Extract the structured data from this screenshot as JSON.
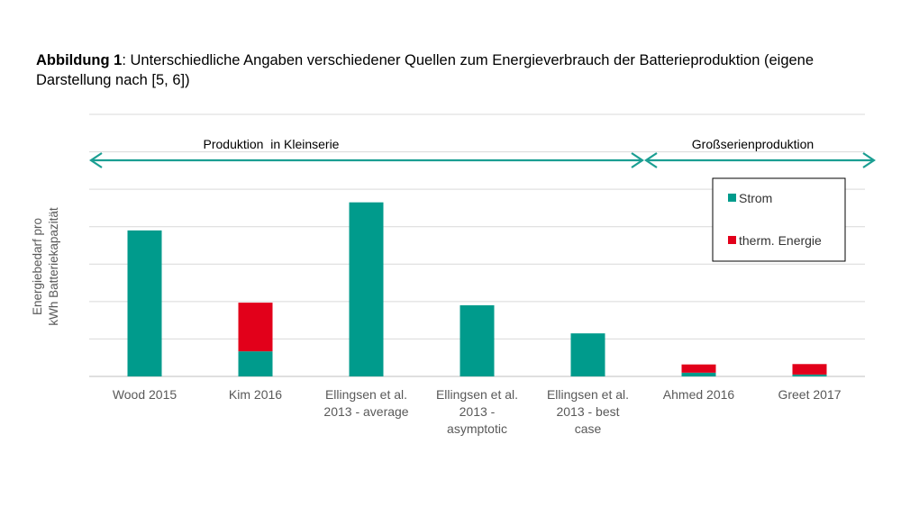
{
  "caption": {
    "bold": "Abbildung 1",
    "text": ": Unterschiedliche Angaben verschiedener Quellen zum Energieverbrauch der Batterieproduktion (eigene Darstellung nach [5, 6])"
  },
  "chart_data": {
    "type": "bar",
    "stacked": true,
    "title": "",
    "xlabel": "",
    "ylabel": "Energiebedarf pro kWh Batteriekapazität",
    "ylabel_lines": [
      "Energiebedarf pro",
      "kWh Batteriekapazität"
    ],
    "ylim": [
      0,
      7
    ],
    "gridlines": 7,
    "tick_labels_shown": false,
    "categories": [
      [
        "Wood 2015"
      ],
      [
        "Kim 2016"
      ],
      [
        "Ellingsen et al.",
        "2013 - average"
      ],
      [
        "Ellingsen et al.",
        "2013 -",
        "asymptotic"
      ],
      [
        "Ellingsen et al.",
        "2013 - best",
        "case"
      ],
      [
        "Ahmed 2016"
      ],
      [
        "Greet 2017"
      ]
    ],
    "series": [
      {
        "name": "Strom",
        "color": "#009B8C",
        "values": [
          3.9,
          0.67,
          4.65,
          1.9,
          1.15,
          0.1,
          0.05
        ]
      },
      {
        "name": "therm. Energie",
        "color": "#E2001A",
        "values": [
          0,
          1.3,
          0,
          0,
          0,
          0.22,
          0.28
        ]
      }
    ],
    "ranges": [
      {
        "label": "Produktion  in Kleinserie",
        "from_index": 0,
        "to_index": 4
      },
      {
        "label": "Großserienproduktion",
        "from_index": 5,
        "to_index": 6
      }
    ],
    "range_arrow_color": "#1A9E92",
    "legend_position": "top-right"
  }
}
